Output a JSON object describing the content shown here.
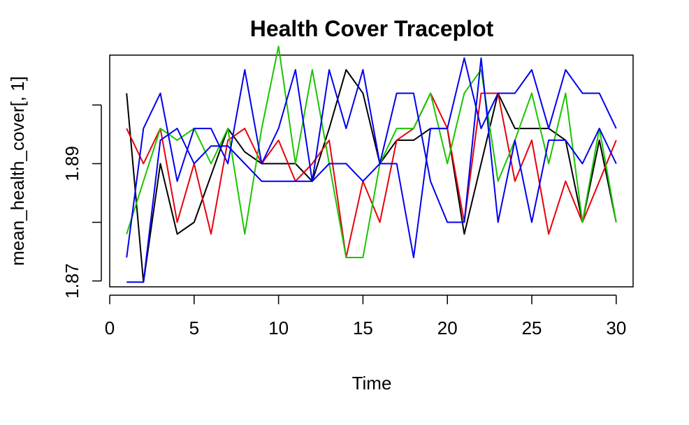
{
  "chart_data": {
    "type": "line",
    "title": "Health Cover Traceplot",
    "xlabel": "Time",
    "ylabel": "mean_health_cover[, 1]",
    "xlim": [
      0,
      31
    ],
    "ylim": [
      1.869,
      1.9085
    ],
    "xticks": [
      "0",
      "5",
      "10",
      "15",
      "20",
      "25",
      "30"
    ],
    "yticks": [
      "1.87",
      "1.89"
    ],
    "x": [
      1,
      2,
      3,
      4,
      5,
      6,
      7,
      8,
      9,
      10,
      11,
      12,
      13,
      14,
      15,
      16,
      17,
      18,
      19,
      20,
      21,
      22,
      23,
      24,
      25,
      26,
      27,
      28,
      29,
      30
    ],
    "series": [
      {
        "color": "#000000",
        "values": [
          1.902,
          1.8698,
          1.89,
          1.878,
          1.88,
          1.888,
          1.896,
          1.892,
          1.89,
          1.89,
          1.89,
          1.887,
          1.896,
          1.906,
          1.902,
          1.89,
          1.894,
          1.894,
          1.896,
          1.896,
          1.878,
          1.89,
          1.902,
          1.896,
          1.896,
          1.896,
          1.894,
          1.88,
          1.894,
          1.88
        ]
      },
      {
        "color": "#e8000b",
        "values": [
          1.896,
          1.89,
          1.896,
          1.88,
          1.89,
          1.878,
          1.894,
          1.896,
          1.89,
          1.894,
          1.887,
          1.89,
          1.894,
          1.874,
          1.887,
          1.88,
          1.894,
          1.896,
          1.902,
          1.896,
          1.88,
          1.902,
          1.902,
          1.887,
          1.894,
          1.878,
          1.887,
          1.88,
          1.887,
          1.894
        ]
      },
      {
        "color": "#1bc400",
        "values": [
          1.878,
          1.887,
          1.896,
          1.894,
          1.896,
          1.89,
          1.896,
          1.878,
          1.896,
          1.91,
          1.89,
          1.906,
          1.89,
          1.874,
          1.874,
          1.89,
          1.896,
          1.896,
          1.902,
          1.89,
          1.902,
          1.906,
          1.887,
          1.894,
          1.902,
          1.89,
          1.902,
          1.88,
          1.896,
          1.88
        ]
      },
      {
        "color": "#0000ee",
        "values": [
          1.8698,
          1.8698,
          1.894,
          1.896,
          1.89,
          1.893,
          1.893,
          1.89,
          1.887,
          1.887,
          1.887,
          1.887,
          1.89,
          1.89,
          1.887,
          1.89,
          1.89,
          1.874,
          1.896,
          1.896,
          1.908,
          1.896,
          1.902,
          1.902,
          1.906,
          1.896,
          1.906,
          1.902,
          1.902,
          1.896
        ]
      },
      {
        "color": "#0000ee",
        "values": [
          1.874,
          1.896,
          1.902,
          1.887,
          1.896,
          1.896,
          1.89,
          1.906,
          1.89,
          1.896,
          1.906,
          1.887,
          1.906,
          1.896,
          1.906,
          1.89,
          1.902,
          1.902,
          1.887,
          1.88,
          1.88,
          1.908,
          1.88,
          1.894,
          1.88,
          1.894,
          1.894,
          1.89,
          1.896,
          1.89
        ]
      }
    ]
  }
}
